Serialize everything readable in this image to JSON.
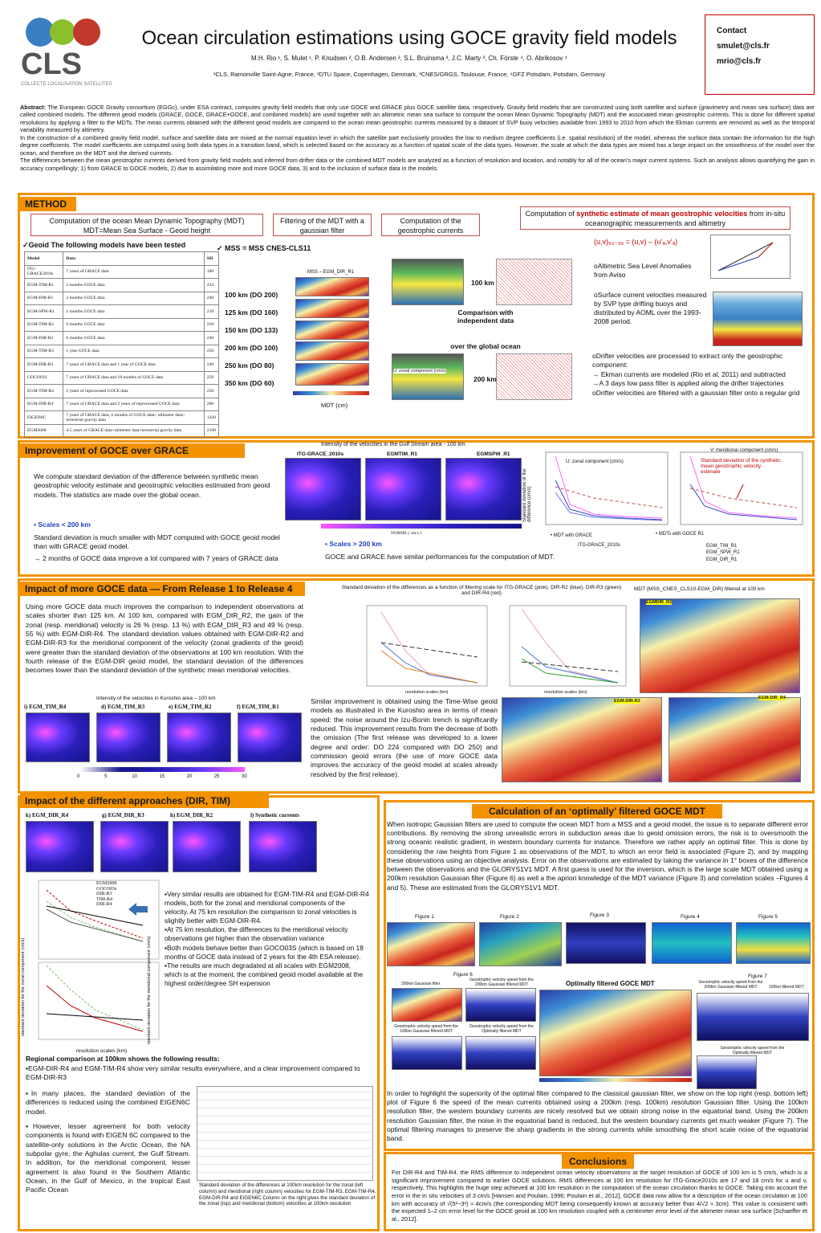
{
  "header": {
    "title": "Ocean circulation estimations using GOCE gravity field models",
    "authors": "M.H. Rio ¹, S. Mulet ¹, P. Knudsen ², O.B. Andersen ², S.L. Bruinsma ³, J.C. Marty ³, Ch. Förste ⁴, O. Abrikosov ⁴",
    "affiliations": "¹CLS, Ramonville Saint-Agne, France, ²DTU Space, Copenhagen, Denmark, ³CNES/GRGS, Toulouse, France, ⁴GFZ Potsdam, Potsdam, Germany",
    "logo": "CLS",
    "logo_sub": "COLLECTE LOCALISATION SATELLITES",
    "contact": {
      "label": "Contact",
      "emails": [
        "smulet@cls.fr",
        "mrio@cls.fr"
      ]
    }
  },
  "abstract": {
    "label": "Abstract:",
    "paragraphs": [
      "The European GOCE Gravity consortium (EGGc), under ESA contract, computes gravity field models that only use GOCE and GRACE plus GOCE satellite data, respectively. Gravity field models that are constructed using both satellite and surface (gravimetry and mean sea surface) data are called combined models. The different geoid models (GRACE, GOCE, GRACE+GOCE, and combined models) are used together with an altimetric mean sea surface to compute the ocean Mean Dynamic Topography (MDT) and the associated mean geostrophic currents. This is done for different spatial resolutions by applying a filter to the MDTs. The mean currents obtained with the different geoid models are compared to the ocean mean geostrophic currents measured by a dataset of SVP buoy velocities available from 1993 to 2010 from which the Ekman currents are removed as well as the temporal variability measured by altimetry.",
      "In the construction of a combined gravity field model, surface and satellite data are mixed at the normal equation level in which the satellite part exclusively provides the low to medium degree coefficients (i.e. spatial resolution) of the model, whereas the surface data contain the information for the high degree coefficients. The model coefficients are computed using both data types in a transition band, which is selected based on the accuracy as a function of spatial scale of the data types. However, the scale at which the data types are mixed has a large impact on the smoothness of the model over the ocean, and therefore on the MDT and the derived currents.",
      "The differences between the mean geostrophic currents derived from gravity field models and inferred from drifter data or the combined MDT models are analyzed as a function of resolution and location, and notably for all of the ocean’s major current systems. Such an analysis allows quantifying the gain in accuracy compellingly: 1) from GRACE to GOCE models, 2) due to assimilating more and more GOCE data, 3) and to the inclusion of surface data in the models."
    ]
  },
  "method": {
    "heading": "METHOD",
    "steps": [
      {
        "line1": "Computation of the ocean Mean Dynamic Topography (MDT)",
        "line2": "MDT=Mean Sea Surface - Geoid height"
      },
      {
        "line1": "Filtering of the MDT with a gaussian filter"
      },
      {
        "line1": "Computation of the geostrophic currents"
      }
    ],
    "synthetic_box": {
      "prefix": "Computation of ",
      "highlight": "synthetic estimate of mean geostrophic velocities",
      "suffix": " from in-situ oceanographic measurements and altimetry"
    },
    "geoid_label": "✓Geoid   The following models have been tested",
    "mss_label": "✓ MSS = MSS CNES-CLS11",
    "table": {
      "header": [
        "Model",
        "Data",
        "SH"
      ],
      "rows": [
        [
          "ITG-GRACE2010s",
          "7 years of GRACE data",
          "180"
        ],
        [
          "EGM-TIM-R1",
          "2 months GOCE data",
          "224"
        ],
        [
          "EGM-DIR-R1",
          "2 months GOCE data",
          "240"
        ],
        [
          "EGM-SPW-R1",
          "2 months GOCE data",
          "210"
        ],
        [
          "EGM-TIM-R2",
          "6 months GOCE data",
          "250"
        ],
        [
          "EGM-DIR-R2",
          "6 months GOCE data",
          "240"
        ],
        [
          "EGM-TIM-R3",
          "1 year GOCE data",
          "250"
        ],
        [
          "EGM-DIR-R3",
          "7 years of GRACE data and 1 year of GOCE data",
          "240"
        ],
        [
          "GOCO03S",
          "7 years of GRACE data and 18 months of GOCE data",
          "250"
        ],
        [
          "EGM-TIM-R4",
          "2 years of reprocessed GOCE data",
          "250"
        ],
        [
          "EGM-DIR-R4",
          "7 years of GRACE data and 2 years of reprocessed GOCE data",
          "260"
        ],
        [
          "EIGEN6C",
          "7 years of GRACE data, 6 months of GOCE data+ altimeter data+ terrestrial gravity data",
          "1420"
        ],
        [
          "EGM2008",
          "4.5 years of GRACE data+altimeter data+terrestrial gravity data",
          "2190"
        ]
      ]
    },
    "scales": [
      "100 km (DO 200)",
      "125 km (DO 160)",
      "150 km (DO 133)",
      "200 km (DO 100)",
      "250 km (DO 80)",
      "350 km (DO 60)"
    ],
    "map_title": "MSS – EGM_DIR_R1",
    "map_unit": "MDT (cm)",
    "res_top": "100 km",
    "res_bottom": "200 km",
    "comparison": "Comparison with independent data",
    "over": "over the global ocean",
    "zonal": "U:  zonal component (cm/s)",
    "equation": "(u,v)₉₃₋₉₉ = (u,v) – (u’ₐ,v’ₐ)",
    "bullets": [
      "oAltimetric Sea Level Anomalies from Aviso",
      "oSurface current velocities measured by SVP type drifting buoys and distributed by AOML over the 1993-2008 period.",
      "oDrifter velocities are processed to extract only the geostrophic component:",
      "→ Ekman currents are modeled (Rio et al, 2011) and subtracted",
      "→A 3 days low pass filter is applied along the drifter trajectories",
      "oDrifter velocities are filtered with a gaussian filter onto a regular grid"
    ]
  },
  "improvement": {
    "heading": "Improvement of GOCE over GRACE",
    "intro": "We compute standard deviation of the difference between synthetic mean geostrophic velocity estimate and geostrophic velocities estimated from geoid models.   The statistics are made over the global ocean.",
    "small_scales": "▪ Scales < 200 km",
    "small_text": "Standard deviation is much smaller with MDT computed with GOCE geoid model than with GRACE geoid model.",
    "small_arrow": "→ 2 months of GOCE data improve a lot compared with 7 years of GRACE  data",
    "maps_title": "Intensity of the velocities in the Gulf Stream area - 100 km",
    "maps": [
      "ITG-GRACE_2010s",
      "EGMTIM_R1",
      "EGMSPW_R1"
    ],
    "colorbar": "NORME ( cm/s )",
    "large_scales": "▪ Scales > 200 km",
    "large_text": "GOCE and GRACE have similar performances for the computation of MDT.",
    "u_title": "U:  zonal component (cm/s)",
    "v_title": "V: meridional component (cm/s)",
    "y_label": "Standard deviation of the difference (cm/s)",
    "annotation": "Standard deviation of the synthetic mean geostrophic velocity estimate",
    "legend_grace": "• MDT with GRACE",
    "grace_model": "ITG-GRACE_2010s",
    "legend_goce": "• MDTs with GOCE R1",
    "goce_models": [
      "EGM_TIM_R1",
      "EGM_SPW_R1",
      "EGM_DIR_R1"
    ]
  },
  "more_goce": {
    "heading": "Impact of more GOCE data — From Release 1 to Release 4",
    "text": "Using more GOCE data much improves the comparison to independent observations at scales shorter than 125 km. At 100 km, compared with EGM_DIR_R2, the gain of the zonal (resp. meridional) velocity is 26 % (resp. 13 %) with EGM_DIR_R3 and 49 % (resp. 55 %) with EGM-DIR-R4. The standard deviation values obtained with EGM-DIR-R2 and EGM-DIR-R3 for the meridional component of the velocity (zonal gradients of the geoid) were greater than the standard deviation of the observations at 100 km resolution. With the fourth release of the EGM-DIR geoid model, the standard deviation of the differences becomes lower than the standard deviation of the synthetic mean meridional velocities.",
    "kuroshio_title": "Intensity of the velocities in Kuroshio area – 100  km",
    "kuroshio_maps": [
      "i) EGM_TIM_R4",
      "d) EGM_TIM_R3",
      "e) EGM_TIM_R2",
      "f) EGM_TIM_R1"
    ],
    "colorbar_ticks": [
      "0",
      "5",
      "10",
      "15",
      "20",
      "25",
      "30"
    ],
    "plots_caption": "Standard deviation of the differences as a function of filtering scale for ITG-GRACE (pink), DIR-R2 (blue), DIR-R3 (green) and DIR-R4 (red)",
    "plot_x": "resolution scales (km)",
    "mdt_title": "MDT (MSS_CNES_CLS10-EGM_DIR)  filtered at 100 km",
    "mdt_maps": [
      "EGMDIR_R2",
      "EGM-DIR-R3",
      "EGM-DIR_R4"
    ],
    "text2": "Similar improvement is obtained using the Time-Wise geoid models as illustrated in the Kuroshio area in terms of mean speed: the noise around the Izu-Bonin trench is significantly reduced. This improvement results from the decrease of both the omission (The first release was developed to a lower degree and order: DO 224 compared with DO 250) and commission geoid errors (the use of more GOCE data improves the accuracy of the geoid model at scales already resolved by the first release)."
  },
  "approaches": {
    "heading": "Impact of the different approaches (DIR, TIM)",
    "maps": [
      "k) EGM_DIR_R4",
      "g) EGM_DIR_R3",
      "h) EGM_DIR_R2",
      "l) Synthetic currents"
    ],
    "legend": [
      "EGM2008",
      "GOCO03s",
      "DIR-R3",
      "TIM-R4",
      "DIR-R4"
    ],
    "plot_x": "resolution scales (km)",
    "y_zonal": "standard deviation for the zonal component (cm/s)",
    "y_merid": "standard deviation for the meridional component (cm/s)",
    "bullets": [
      "▪Very similar results are obtained for EGM-TIM-R4 and EGM-DIR-R4 models, both for the zonal and meridional components of the velocity. At 75 km resolution the comparison to zonal velocities is slightly better with EGM-DIR-R4.",
      "▪At 75 km resolution, the differences to the meridional velocity observations get higher than the observation variance",
      "▪Both models behave better than GOCO03S (which is based on 18 months of GOCE data instead of 2 years for the 4th ESA release).",
      "▪The results are much degradated at all scales with EGM2008, which is at the moment, the combined geoid model available at the highest order/degree SH expension"
    ],
    "regional_title": "Regional comparison at 100km shows the following results:",
    "regional_1": "▪EGM-DIR-R4 and EGM-TIM-R4 show very similar results everywhere, and a clear improvement compared to EGM-DIR-R3",
    "regional_2": "▪In many places, the standard deviation of the differences is reduced using the combined EIGEN6C model.",
    "regional_3": "▪However, lesser agreement for both velocity components is found with EIGEN 6C compared to the satellite-only solutions in the Arctic Ocean, the NA subpolar gyre, the Aghulas current, the Gulf Stream. In addition, for the meridional component, lesser agreement is also found in the Southern Atlantic Ocean, in the Gulf of Mexico, in the tropical East Pacific Ocean",
    "caption": "Standard deviation of the differences at 100km resolution for the zonal (left column) and meridional (right column) velocities for EGM-TIM-R3, EGM-TIM-R4, EGM-DIR-R4 and EIGEN6C Column on the right gives the standard deviation of the zonal (top) and meridional (bottom) velocities at 100km resolution"
  },
  "optimal": {
    "heading": "Calculation of an ‘optimally’ filtered GOCE MDT",
    "text": "When isotropic Gaussian filters are used to compute the ocean MDT from a MSS and a geoid model, the issue is to separate different error contributions. By removing the strong unrealistic errors in subduction areas due to geoid omission errors, the risk is to oversmooth the strong oceanic realistic gradient, in western boundary currents for instance. Therefore we rather apply an optimal filter. This is done by considering the raw heights from Figure 1 as observations of the MDT, to which an error field is associated (Figure 2), and by mapping these observations using an objective analysis. Error on the observations are estimated by taking the variance in 1° boxes of the difference between the observations and the GLORYS1V1 MDT. A first guess is used for the inversion, which is the large scale MDT obtained using a 200km resolution Gaussian filter (Figure 6) as well a the apriori knowledge of the MDT variance (Figure 3) and correlation scales –Figures 4 and 5). These are estimated from the GLORYS1V1 MDT.",
    "figures": [
      "Figure 1",
      "Figure 2",
      "Figure 3",
      "Figure 4",
      "Figure 5"
    ],
    "figure6": "Figure 6",
    "figure7": "Figure 7",
    "fig6_labels": [
      "200km Gaussian filter",
      "Geostrophic velocity speed from the 200km Gaussian filtered MDT",
      "Geostrophic velocity speed from the 100km Gaussian filtered MDT",
      "Geostrophic velocity speed from the Optimally filtered MDT"
    ],
    "center_title": "Optimally filtered GOCE MDT",
    "fig7_labels": [
      "Geostrophic velocity speed from the 200km Gaussian filtered MDT",
      "100km filtered MDT",
      "Geostrophic velocity speed from the Optimally filtered MDT"
    ],
    "text2": "In order to highlight the superiority of the optimal filter compared to the classical gaussian filter, we show on the top right (resp. bottom left) plot of Figure 6 the speed of the mean currents obtained using a 200km (resp. 100km) resolution Gaussian filter. Using the 100km resolution filter, the western boundary currents are nicely resolved but we obtain strong noise in the equatorial band. Using the 200km resolution Gaussian filter, the noise in the equatorial band is reduced, but the western boundary currents get much weaker (Figure 7). The optimal filtering manages to preserve the sharp gradients in the strong currents while smoothing the short scale noise of the equatorial band."
  },
  "conclusions": {
    "heading": "Conclusions",
    "text": "For DIR-R4 and TIM-R4, the RMS difference to independent ocean velocity observations at the target resolution of GOCE of 100 km is 5 cm/s, which is a significant improvement compared to earlier GOCE solutions. RMS differences at 100 km resolution for ITG-Grace2010s are 17 and 18 cm/s for u and v, respectively. This highlights the huge step achieved at 100 km resolution in the computation of the ocean circulation thanks to GOCE. Taking into account the error in the in situ velocities of 3 cm/s [Hansen and Poulain, 1996; Poulain et al., 2012], GOCE data now allow for a description of the ocean circulation at 100 km with accuracy of √(5²−3²) ≈ 4cm/s (the corresponding MDT being consequently known at accuracy better than 4/√2 ≈ 3cm). This value is consistent with the expected 1–2 cm error level for the GOCE geoid at 100 km resolution coupled with a centimeter error level of the altimeter mean sea surface [Schaeffer et al., 2012]."
  }
}
